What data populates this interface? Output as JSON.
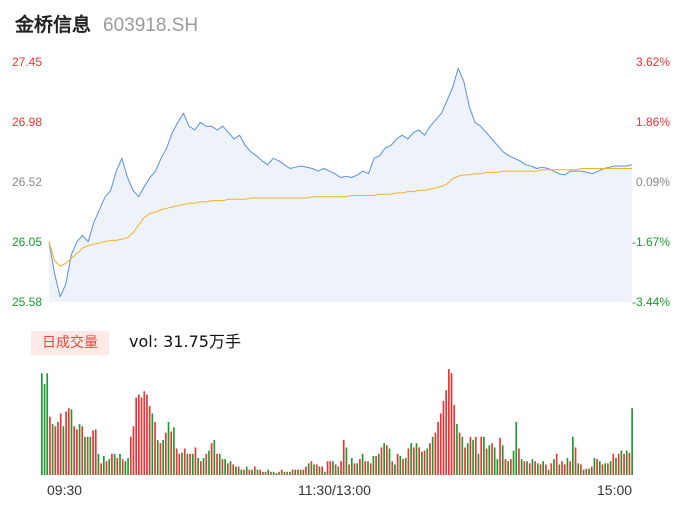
{
  "header": {
    "name": "金桥信息",
    "code": "603918.SH"
  },
  "colors": {
    "up": "#e83535",
    "down": "#1a9a2e",
    "price_line": "#5b8fe0",
    "avg_line": "#f5ae2a",
    "area_fill": "#eef3fb",
    "badge_bg": "#fde9e6",
    "badge_text": "#e8493e"
  },
  "volume_panel": {
    "badge": "日成交量",
    "summary": "vol: 31.75万手"
  },
  "chart_data": [
    {
      "type": "line",
      "yaxis_left": {
        "ticks": [
          "27.45",
          "26.98",
          "26.52",
          "26.05",
          "25.58"
        ],
        "tick_colors": [
          "up",
          "up",
          "neutral",
          "down",
          "down"
        ]
      },
      "yaxis_right": {
        "ticks": [
          "3.62%",
          "1.86%",
          "0.09%",
          "-1.67%",
          "-3.44%"
        ],
        "tick_colors": [
          "up",
          "up",
          "neutral",
          "down",
          "down"
        ]
      },
      "ylim": [
        25.58,
        27.45
      ],
      "x_ticks": [
        "09:30",
        "11:30/13:00",
        "15:00"
      ],
      "series": [
        {
          "key": "price",
          "values": [
            26.05,
            25.8,
            25.62,
            25.72,
            25.95,
            26.05,
            26.1,
            26.05,
            26.2,
            26.3,
            26.4,
            26.45,
            26.6,
            26.7,
            26.55,
            26.45,
            26.4,
            26.48,
            26.55,
            26.6,
            26.7,
            26.78,
            26.9,
            26.98,
            27.05,
            26.95,
            26.92,
            26.98,
            26.95,
            26.95,
            26.92,
            26.95,
            26.9,
            26.85,
            26.88,
            26.8,
            26.75,
            26.72,
            26.68,
            26.65,
            26.7,
            26.68,
            26.65,
            26.62,
            26.63,
            26.64,
            26.63,
            26.62,
            26.6,
            26.62,
            26.6,
            26.58,
            26.55,
            26.56,
            26.55,
            26.57,
            26.6,
            26.58,
            26.7,
            26.72,
            26.78,
            26.8,
            26.85,
            26.88,
            26.85,
            26.9,
            26.92,
            26.88,
            26.95,
            27.0,
            27.05,
            27.15,
            27.25,
            27.4,
            27.3,
            27.1,
            26.98,
            26.95,
            26.9,
            26.85,
            26.8,
            26.75,
            26.72,
            26.7,
            26.68,
            26.65,
            26.64,
            26.62,
            26.63,
            26.62,
            26.6,
            26.58,
            26.57,
            26.6,
            26.6,
            26.6,
            26.59,
            26.58,
            26.6,
            26.62,
            26.63,
            26.64,
            26.64,
            26.64,
            26.65
          ],
          "color": "price_line"
        },
        {
          "key": "average",
          "values": [
            26.05,
            25.9,
            25.86,
            25.88,
            25.92,
            25.96,
            26.0,
            26.02,
            26.03,
            26.04,
            26.05,
            26.06,
            26.06,
            26.07,
            26.08,
            26.12,
            26.18,
            26.24,
            26.27,
            26.28,
            26.3,
            26.31,
            26.32,
            26.33,
            26.34,
            26.35,
            26.35,
            26.36,
            26.36,
            26.37,
            26.37,
            26.37,
            26.38,
            26.38,
            26.38,
            26.38,
            26.39,
            26.39,
            26.39,
            26.39,
            26.39,
            26.39,
            26.39,
            26.39,
            26.39,
            26.39,
            26.39,
            26.4,
            26.4,
            26.4,
            26.4,
            26.4,
            26.4,
            26.4,
            26.41,
            26.41,
            26.41,
            26.41,
            26.41,
            26.42,
            26.42,
            26.42,
            26.43,
            26.43,
            26.44,
            26.44,
            26.45,
            26.45,
            26.46,
            26.47,
            26.48,
            26.5,
            26.54,
            26.56,
            26.57,
            26.57,
            26.58,
            26.58,
            26.59,
            26.59,
            26.59,
            26.6,
            26.6,
            26.6,
            26.6,
            26.6,
            26.6,
            26.6,
            26.61,
            26.61,
            26.61,
            26.61,
            26.61,
            26.61,
            26.61,
            26.62,
            26.62,
            26.62,
            26.62,
            26.62,
            26.62,
            26.62,
            26.62,
            26.62,
            26.62
          ],
          "color": "avg_line"
        }
      ]
    },
    {
      "type": "bar",
      "ylim": [
        0,
        100
      ],
      "values": [
        96,
        86,
        96,
        55,
        48,
        46,
        50,
        58,
        46,
        60,
        63,
        62,
        46,
        43,
        48,
        46,
        36,
        36,
        36,
        42,
        43,
        20,
        11,
        18,
        13,
        15,
        20,
        20,
        16,
        20,
        15,
        13,
        16,
        36,
        46,
        73,
        76,
        73,
        79,
        76,
        65,
        58,
        50,
        33,
        30,
        33,
        40,
        50,
        41,
        45,
        25,
        20,
        21,
        25,
        20,
        20,
        20,
        26,
        16,
        13,
        16,
        20,
        23,
        30,
        33,
        20,
        20,
        15,
        15,
        11,
        13,
        10,
        8,
        8,
        5,
        5,
        8,
        5,
        5,
        8,
        5,
        5,
        3,
        3,
        5,
        3,
        3,
        2,
        3,
        5,
        3,
        3,
        3,
        5,
        5,
        5,
        5,
        5,
        8,
        11,
        13,
        10,
        10,
        8,
        8,
        3,
        13,
        13,
        13,
        10,
        8,
        13,
        33,
        26,
        10,
        16,
        11,
        11,
        15,
        20,
        13,
        13,
        11,
        18,
        18,
        20,
        26,
        30,
        28,
        25,
        13,
        10,
        20,
        18,
        15,
        16,
        25,
        30,
        26,
        30,
        26,
        22,
        23,
        25,
        30,
        36,
        40,
        50,
        58,
        70,
        80,
        100,
        96,
        66,
        48,
        40,
        36,
        26,
        30,
        36,
        33,
        36,
        20,
        36,
        36,
        25,
        28,
        30,
        26,
        15,
        35,
        28,
        15,
        13,
        15,
        23,
        50,
        25,
        15,
        13,
        13,
        11,
        15,
        13,
        11,
        10,
        13,
        10,
        5,
        11,
        15,
        20,
        10,
        13,
        10,
        16,
        13,
        36,
        26,
        11,
        10,
        5,
        6,
        6,
        8,
        16,
        15,
        13,
        10,
        11,
        11,
        13,
        20,
        16,
        20,
        23,
        20,
        23,
        21,
        63
      ],
      "colors": [
        "down",
        "down",
        "down",
        "up",
        "down",
        "up",
        "up",
        "up",
        "down",
        "up",
        "up",
        "down",
        "up",
        "up",
        "down",
        "up",
        "down",
        "up",
        "down",
        "up",
        "up",
        "down",
        "up",
        "down",
        "up",
        "down",
        "up",
        "down",
        "up",
        "down",
        "up",
        "down",
        "down",
        "up",
        "up",
        "up",
        "up",
        "up",
        "up",
        "up",
        "up",
        "down",
        "up",
        "down",
        "up",
        "down",
        "up",
        "down",
        "up",
        "down",
        "up",
        "up",
        "down",
        "up",
        "down",
        "up",
        "down",
        "up",
        "down",
        "up",
        "down",
        "up",
        "down",
        "up",
        "down",
        "up",
        "down",
        "up",
        "down",
        "up",
        "down",
        "up",
        "down",
        "up",
        "down",
        "up",
        "down",
        "up",
        "down",
        "up",
        "down",
        "up",
        "down",
        "up",
        "down",
        "up",
        "down",
        "up",
        "down",
        "up",
        "down",
        "up",
        "down",
        "up",
        "down",
        "up",
        "down",
        "up",
        "up",
        "down",
        "up",
        "down",
        "up",
        "down",
        "up",
        "down",
        "up",
        "up",
        "down",
        "up",
        "down",
        "up",
        "up",
        "down",
        "up",
        "down",
        "up",
        "down",
        "up",
        "down",
        "up",
        "down",
        "up",
        "down",
        "up",
        "down",
        "up",
        "down",
        "up",
        "down",
        "up",
        "down",
        "up",
        "down",
        "up",
        "down",
        "up",
        "down",
        "up",
        "down",
        "up",
        "down",
        "up",
        "down",
        "up",
        "down",
        "up",
        "up",
        "up",
        "up",
        "up",
        "up",
        "up",
        "up",
        "down",
        "up",
        "down",
        "up",
        "down",
        "up",
        "down",
        "up",
        "down",
        "up",
        "down",
        "up",
        "down",
        "up",
        "down",
        "down",
        "up",
        "down",
        "up",
        "down",
        "up",
        "down",
        "down",
        "up",
        "down",
        "up",
        "down",
        "up",
        "down",
        "up",
        "down",
        "up",
        "down",
        "up",
        "down",
        "up",
        "down",
        "up",
        "down",
        "up",
        "up",
        "down",
        "up",
        "down",
        "up",
        "down",
        "up",
        "down",
        "up",
        "down",
        "up",
        "down",
        "up",
        "down",
        "up",
        "down",
        "up",
        "down",
        "up",
        "down",
        "up",
        "down",
        "up",
        "down",
        "up",
        "down"
      ]
    }
  ]
}
